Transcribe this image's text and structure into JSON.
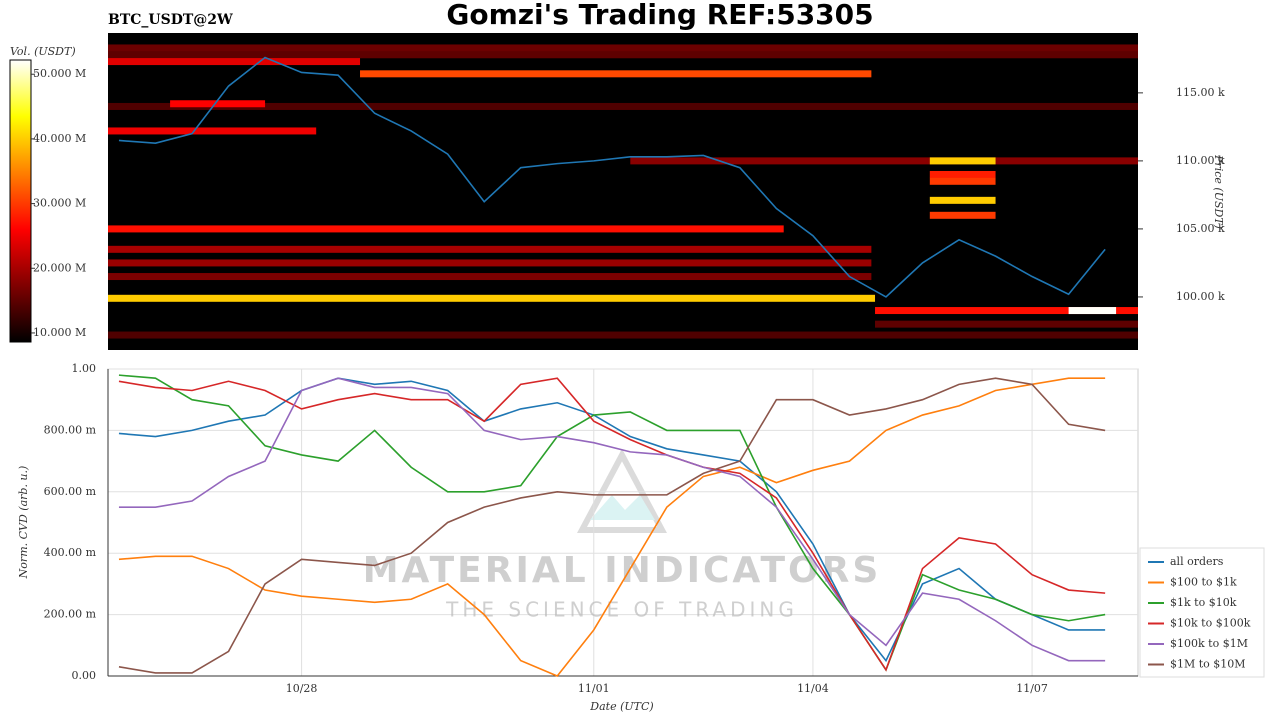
{
  "chart_data": [
    {
      "type": "heatmap",
      "title": "Gomzi's Trading REF:53305",
      "subtitle": "BTC_USDT@2W",
      "ylabel": "Price (USDT)",
      "colorbar_label": "Vol. (USDT)",
      "xlim": [
        25.35,
        39.45
      ],
      "ylim": [
        96100,
        119400
      ],
      "yticks": [
        {
          "value": 100000,
          "label": "100.00 k"
        },
        {
          "value": 105000,
          "label": "105.00 k"
        },
        {
          "value": 110000,
          "label": "110.00 k"
        },
        {
          "value": 115000,
          "label": "115.00 k"
        }
      ],
      "clim": [
        8600000,
        52200000
      ],
      "cticks": [
        {
          "value": 10000000,
          "label": "10.000 M"
        },
        {
          "value": 20000000,
          "label": "20.000 M"
        },
        {
          "value": 30000000,
          "label": "30.000 M"
        },
        {
          "value": 40000000,
          "label": "40.000 M"
        },
        {
          "value": 50000000,
          "label": "50.000 M"
        }
      ],
      "bands": [
        {
          "price": 118300,
          "x0": 25.35,
          "x1": 39.45,
          "volume": 16000000
        },
        {
          "price": 117800,
          "x0": 25.35,
          "x1": 39.45,
          "volume": 15000000
        },
        {
          "price": 114000,
          "x0": 25.35,
          "x1": 39.45,
          "volume": 14000000
        },
        {
          "price": 97200,
          "x0": 25.35,
          "x1": 39.45,
          "volume": 14000000
        },
        {
          "price": 98000,
          "x0": 35.85,
          "x1": 39.45,
          "volume": 15000000
        },
        {
          "price": 110000,
          "x0": 32.5,
          "x1": 39.45,
          "volume": 18000000
        },
        {
          "price": 101500,
          "x0": 25.35,
          "x1": 35.8,
          "volume": 17000000
        },
        {
          "price": 102500,
          "x0": 25.35,
          "x1": 35.8,
          "volume": 19000000
        },
        {
          "price": 103500,
          "x0": 25.35,
          "x1": 35.8,
          "volume": 20000000
        },
        {
          "price": 117300,
          "x0": 25.35,
          "x1": 28.8,
          "volume": 24000000
        },
        {
          "price": 112200,
          "x0": 25.35,
          "x1": 28.2,
          "volume": 25000000
        },
        {
          "price": 114200,
          "x0": 26.2,
          "x1": 27.5,
          "volume": 26000000
        },
        {
          "price": 105000,
          "x0": 25.35,
          "x1": 34.6,
          "volume": 27000000
        },
        {
          "price": 116400,
          "x0": 28.8,
          "x1": 35.8,
          "volume": 31000000
        },
        {
          "price": 99000,
          "x0": 35.85,
          "x1": 39.45,
          "volume": 27000000
        },
        {
          "price": 109000,
          "x0": 36.6,
          "x1": 37.5,
          "volume": 28000000
        },
        {
          "price": 108500,
          "x0": 36.6,
          "x1": 37.5,
          "volume": 30000000
        },
        {
          "price": 106000,
          "x0": 36.6,
          "x1": 37.5,
          "volume": 30000000
        },
        {
          "price": 110000,
          "x0": 36.6,
          "x1": 37.5,
          "volume": 40000000
        },
        {
          "price": 107100,
          "x0": 36.6,
          "x1": 37.5,
          "volume": 40000000
        },
        {
          "price": 99900,
          "x0": 25.35,
          "x1": 35.85,
          "volume": 40000000
        },
        {
          "price": 99000,
          "x0": 38.5,
          "x1": 39.15,
          "volume": 52000000
        }
      ],
      "x": [
        25.5,
        26,
        26.5,
        27,
        27.5,
        28,
        28.5,
        29,
        29.5,
        30,
        30.5,
        31,
        31.5,
        32,
        32.5,
        33,
        33.5,
        34,
        34.5,
        35,
        35.5,
        36,
        36.5,
        37,
        37.5,
        38,
        38.5,
        39
      ],
      "price": {
        "color": "#1f77b4",
        "values": [
          111500,
          111300,
          112000,
          115500,
          117600,
          116500,
          116300,
          113500,
          112200,
          110500,
          107000,
          109500,
          109800,
          110000,
          110300,
          110300,
          110400,
          109500,
          106500,
          104500,
          101500,
          100000,
          102500,
          104200,
          103000,
          101500,
          100200,
          103500
        ]
      }
    },
    {
      "type": "line",
      "xlabel": "Date (UTC)",
      "ylabel": "Norm. CVD (arb. u.)",
      "xlim": [
        25.35,
        39.45
      ],
      "ylim": [
        0,
        1
      ],
      "xticks": [
        {
          "value": 28,
          "label": "10/28"
        },
        {
          "value": 32,
          "label": "11/01"
        },
        {
          "value": 35,
          "label": "11/04"
        },
        {
          "value": 38,
          "label": "11/07"
        }
      ],
      "yticks": [
        {
          "value": 0,
          "label": "0.00"
        },
        {
          "value": 0.2,
          "label": "200.00 m"
        },
        {
          "value": 0.4,
          "label": "400.00 m"
        },
        {
          "value": 0.6,
          "label": "600.00 m"
        },
        {
          "value": 0.8,
          "label": "800.00 m"
        },
        {
          "value": 1,
          "label": "1.00"
        }
      ],
      "grid": true,
      "legend": "lower right",
      "x": [
        25.5,
        26,
        26.5,
        27,
        27.5,
        28,
        28.5,
        29,
        29.5,
        30,
        30.5,
        31,
        31.5,
        32,
        32.5,
        33,
        33.5,
        34,
        34.5,
        35,
        35.5,
        36,
        36.5,
        37,
        37.5,
        38,
        38.5,
        39
      ],
      "series": [
        {
          "name": "all orders",
          "color": "#1f77b4",
          "values": [
            0.79,
            0.78,
            0.8,
            0.83,
            0.85,
            0.93,
            0.97,
            0.95,
            0.96,
            0.93,
            0.83,
            0.87,
            0.89,
            0.85,
            0.78,
            0.74,
            0.72,
            0.7,
            0.6,
            0.43,
            0.2,
            0.05,
            0.3,
            0.35,
            0.25,
            0.2,
            0.15,
            0.15
          ]
        },
        {
          "name": "$100 to $1k",
          "color": "#ff7f0e",
          "values": [
            0.38,
            0.39,
            0.39,
            0.35,
            0.28,
            0.26,
            0.25,
            0.24,
            0.25,
            0.3,
            0.2,
            0.05,
            0,
            0.15,
            0.35,
            0.55,
            0.65,
            0.68,
            0.63,
            0.67,
            0.7,
            0.8,
            0.85,
            0.88,
            0.93,
            0.95,
            0.97,
            0.97
          ]
        },
        {
          "name": "$1k to $10k",
          "color": "#2ca02c",
          "values": [
            0.98,
            0.97,
            0.9,
            0.88,
            0.75,
            0.72,
            0.7,
            0.8,
            0.68,
            0.6,
            0.6,
            0.62,
            0.78,
            0.85,
            0.86,
            0.8,
            0.8,
            0.8,
            0.55,
            0.35,
            0.2,
            0.02,
            0.33,
            0.28,
            0.25,
            0.2,
            0.18,
            0.2
          ]
        },
        {
          "name": "$10k to $100k",
          "color": "#d62728",
          "values": [
            0.96,
            0.94,
            0.93,
            0.96,
            0.93,
            0.87,
            0.9,
            0.92,
            0.9,
            0.9,
            0.83,
            0.95,
            0.97,
            0.83,
            0.77,
            0.72,
            0.68,
            0.66,
            0.58,
            0.4,
            0.2,
            0.02,
            0.35,
            0.45,
            0.43,
            0.33,
            0.28,
            0.27
          ]
        },
        {
          "name": "$100k to $1M",
          "color": "#9467bd",
          "values": [
            0.55,
            0.55,
            0.57,
            0.65,
            0.7,
            0.93,
            0.97,
            0.94,
            0.94,
            0.92,
            0.8,
            0.77,
            0.78,
            0.76,
            0.73,
            0.72,
            0.68,
            0.65,
            0.55,
            0.38,
            0.2,
            0.1,
            0.27,
            0.25,
            0.18,
            0.1,
            0.05,
            0.05
          ]
        },
        {
          "name": "$1M to $10M",
          "color": "#8c564b",
          "values": [
            0.03,
            0.01,
            0.01,
            0.08,
            0.3,
            0.38,
            0.37,
            0.36,
            0.4,
            0.5,
            0.55,
            0.58,
            0.6,
            0.59,
            0.59,
            0.59,
            0.66,
            0.7,
            0.9,
            0.9,
            0.85,
            0.87,
            0.9,
            0.95,
            0.97,
            0.95,
            0.82,
            0.8
          ]
        }
      ],
      "watermark": [
        "MATERIAL INDICATORS",
        "THE SCIENCE OF TRADING"
      ]
    }
  ]
}
